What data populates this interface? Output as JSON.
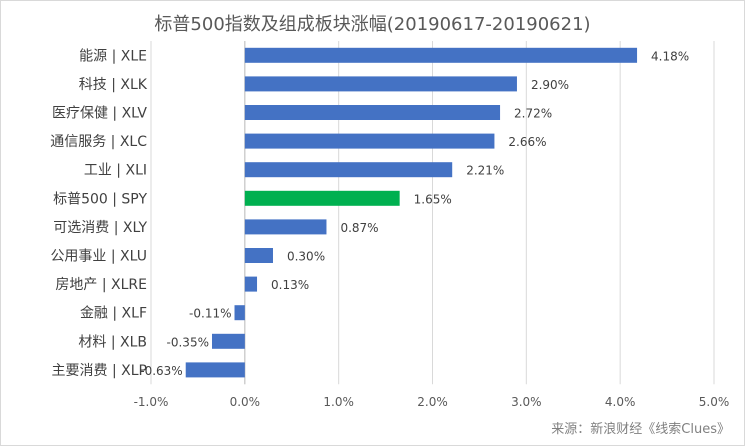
{
  "chart_data": {
    "type": "bar",
    "orientation": "horizontal",
    "title": "标普500指数及组成板块涨幅(20190617-20190621)",
    "categories": [
      "能源 | XLE",
      "科技 | XLK",
      "医疗保健 | XLV",
      "通信服务 | XLC",
      "工业 | XLI",
      "标普500 | SPY",
      "可选消费 | XLY",
      "公用事业 | XLU",
      "房地产 | XLRE",
      "金融 | XLF",
      "材料 | XLB",
      "主要消费 | XLP"
    ],
    "values": [
      4.18,
      2.9,
      2.72,
      2.66,
      2.21,
      1.65,
      0.87,
      0.3,
      0.13,
      -0.11,
      -0.35,
      -0.63
    ],
    "value_labels": [
      "4.18%",
      "2.90%",
      "2.72%",
      "2.66%",
      "2.21%",
      "1.65%",
      "0.87%",
      "0.30%",
      "0.13%",
      "-0.11%",
      "-0.35%",
      "-0.63%"
    ],
    "xlim": [
      -1.0,
      5.0
    ],
    "xticks": [
      -1.0,
      0.0,
      1.0,
      2.0,
      3.0,
      4.0,
      5.0
    ],
    "xtick_labels": [
      "-1.0%",
      "0.0%",
      "1.0%",
      "2.0%",
      "3.0%",
      "4.0%",
      "5.0%"
    ],
    "grid": true,
    "colors": {
      "default": "#4472c4",
      "highlight": "#00b050",
      "grid": "#d9d9d9",
      "axis": "#bfbfbf"
    },
    "highlight_category": "标普500 | SPY"
  },
  "source_note": "来源：新浪财经《线索Clues》"
}
